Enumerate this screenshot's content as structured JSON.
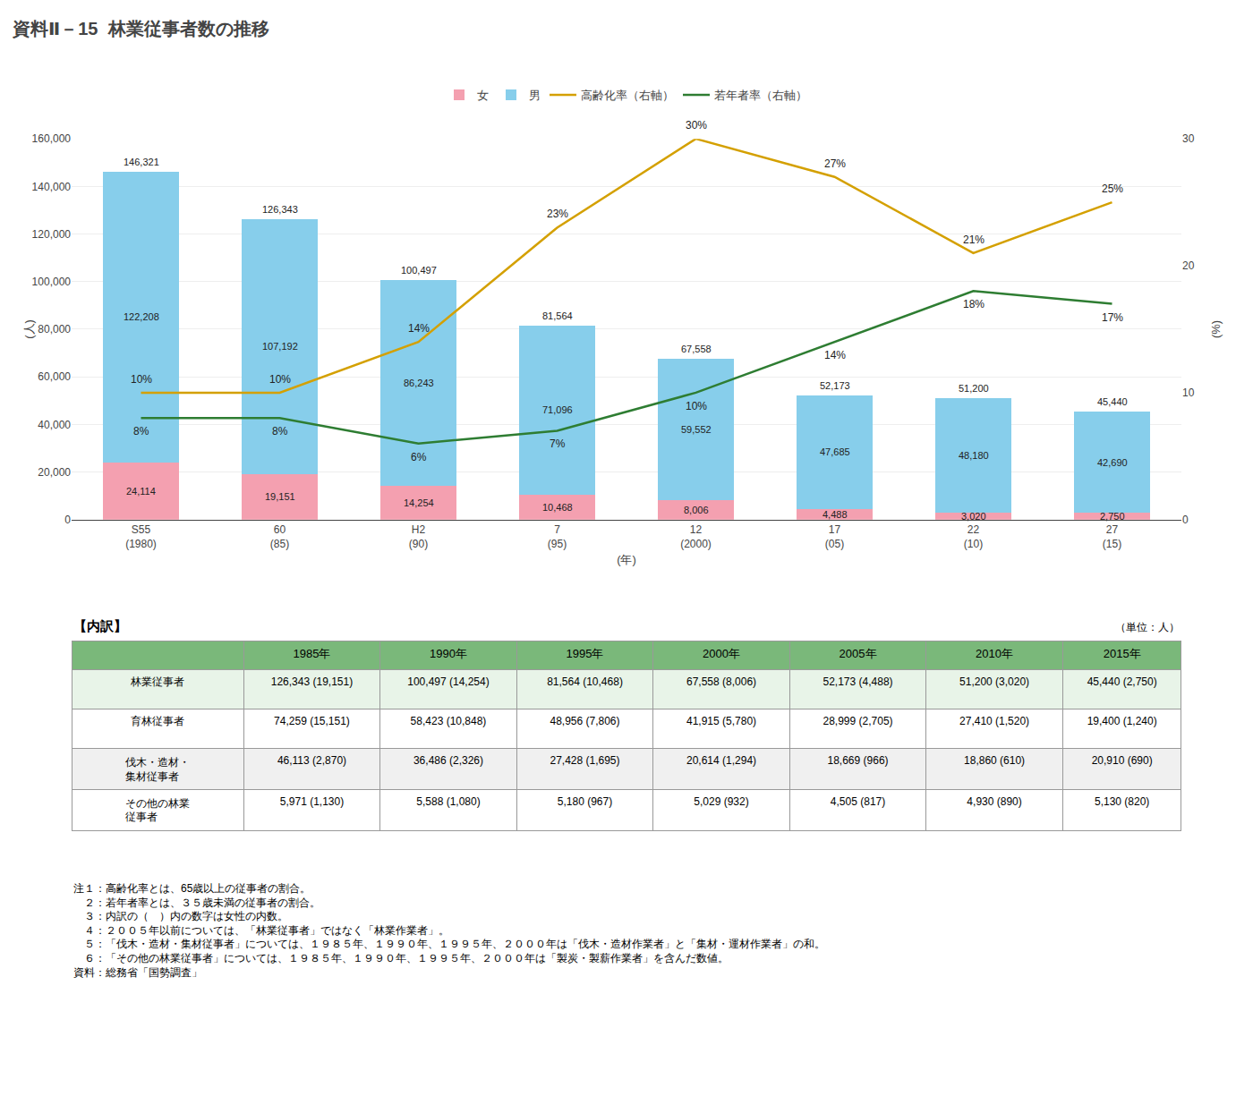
{
  "chart_data": [
    {
      "type": "bar",
      "title": "林業従事者数の推移",
      "subtitle": "資料Ⅱ－15",
      "xlabel": "(年)",
      "ylabel": "(人)",
      "y2label": "(%)",
      "categories": [
        "S55\n(1980)",
        "60\n(85)",
        "H2\n(90)",
        "7\n(95)",
        "12\n(2000)",
        "17\n(05)",
        "22\n(10)",
        "27\n(15)"
      ],
      "stacked": true,
      "data_labels": true,
      "grid": true,
      "legend": "top",
      "ylim": [
        0,
        160000
      ],
      "yticks": [
        0,
        {
          "value": 20000,
          "label": "20,000"
        },
        {
          "value": 40000,
          "label": "40,000"
        },
        {
          "value": 60000,
          "label": "60,000"
        },
        {
          "value": 80000,
          "label": "80,000"
        },
        {
          "value": 100000,
          "label": "100,000"
        },
        {
          "value": 120000,
          "label": "120,000"
        },
        {
          "value": 140000,
          "label": "140,000"
        },
        {
          "value": 160000,
          "label": "160,000"
        }
      ],
      "y2lim": [
        0,
        30
      ],
      "y2ticks": [
        0,
        10,
        20,
        30
      ],
      "series": [
        {
          "name": "女",
          "type": "bar",
          "color": "#f4a0b0",
          "values": [
            24114,
            19151,
            14254,
            10468,
            8006,
            4488,
            3020,
            2750
          ],
          "value_labels": [
            "24,114",
            "19,151",
            "14,254",
            "10,468",
            "8,006",
            "4,488",
            "3,020",
            "2,750"
          ]
        },
        {
          "name": "男",
          "type": "bar",
          "color": "#87ceeb",
          "values": [
            122208,
            107192,
            86243,
            71096,
            59552,
            47685,
            48180,
            42690
          ],
          "value_labels": [
            "122,208",
            "107,192",
            "86,243",
            "71,096",
            "59,552",
            "47,685",
            "48,180",
            "42,690"
          ]
        },
        {
          "name": "高齢化率（右軸）",
          "type": "line",
          "axis": "y2",
          "color": "#d4a000",
          "values": [
            10,
            10,
            14,
            23,
            30,
            27,
            21,
            25
          ],
          "value_labels": [
            "10%",
            "10%",
            "14%",
            "23%",
            "30%",
            "27%",
            "21%",
            "25%"
          ]
        },
        {
          "name": "若年者率（右軸）",
          "type": "line",
          "axis": "y2",
          "color": "#2e7d32",
          "values": [
            8,
            8,
            6,
            7,
            10,
            14,
            18,
            17
          ],
          "value_labels": [
            "8%",
            "8%",
            "6%",
            "7%",
            "10%",
            "14%",
            "18%",
            "17%"
          ]
        }
      ],
      "totals": {
        "values": [
          146321,
          126343,
          100497,
          81564,
          67558,
          52173,
          51200,
          45440
        ],
        "value_labels": [
          "146,321",
          "126,343",
          "100,497",
          "81,564",
          "67,558",
          "52,173",
          "51,200",
          "45,440"
        ]
      }
    },
    {
      "type": "table",
      "title": "【内訳】",
      "subtitle": "（単位：人）",
      "columns": [
        "1985年",
        "1990年",
        "1995年",
        "2000年",
        "2005年",
        "2010年",
        "2015年"
      ],
      "rows": [
        {
          "label": "林業従事者",
          "values": [
            "126,343 (19,151)",
            "100,497 (14,254)",
            "81,564 (10,468)",
            "67,558 (8,006)",
            "52,173 (4,488)",
            "51,200 (3,020)",
            "45,440 (2,750)"
          ]
        },
        {
          "label": "育林従事者",
          "values": [
            "74,259 (15,151)",
            "58,423 (10,848)",
            "48,956 (7,806)",
            "41,915 (5,780)",
            "28,999 (2,705)",
            "27,410 (1,520)",
            "19,400 (1,240)"
          ]
        },
        {
          "label": "伐木・造材・\n集材従事者",
          "values": [
            "46,113 (2,870)",
            "36,486 (2,326)",
            "27,428 (1,695)",
            "20,614 (1,294)",
            "18,669 (966)",
            "18,860 (610)",
            "20,910 (690)"
          ]
        },
        {
          "label": "その他の林業\n従事者",
          "values": [
            "5,971 (1,130)",
            "5,588 (1,080)",
            "5,180 (967)",
            "5,029 (932)",
            "4,505 (817)",
            "4,930 (890)",
            "5,130 (820)"
          ]
        }
      ],
      "annotations": [
        "注１：高齢化率とは、65歳以上の従事者の割合。",
        "　２：若年者率とは、３５歳未満の従事者の割合。",
        "　３：内訳の（　）内の数字は女性の内数。",
        "　４：２００５年以前については、「林業従事者」ではなく「林業作業者」。",
        "　５：「伐木・造材・集材従事者」については、１９８５年、１９９０年、１９９５年、２０００年は「伐木・造材作業者」と「集材・運材作業者」の和。",
        "　６：「その他の林業従事者」については、１９８５年、１９９０年、１９９５年、２０００年は「製炭・製薪作業者」を含んだ数値。",
        "資料：総務省「国勢調査」"
      ]
    }
  ]
}
